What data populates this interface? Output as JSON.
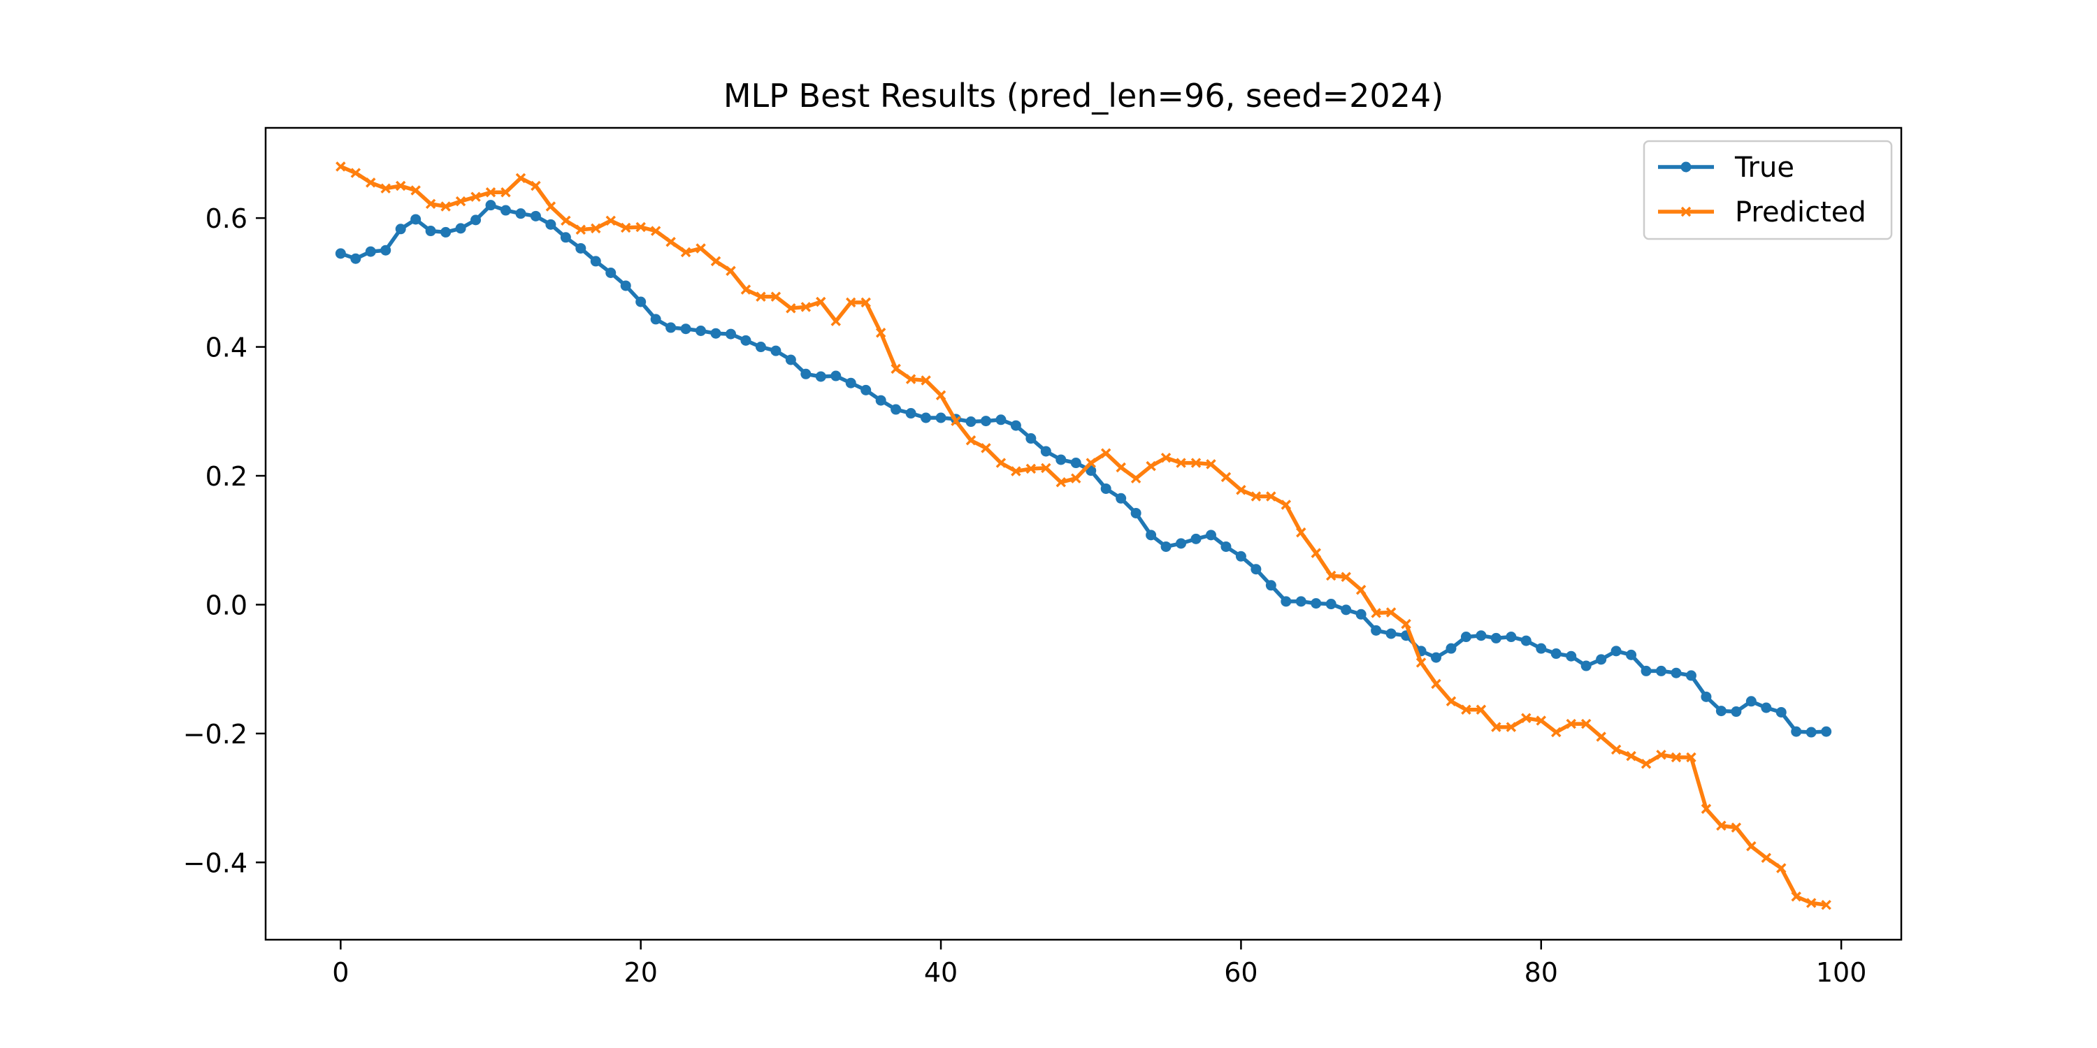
{
  "chart_data": {
    "type": "line",
    "title": "MLP Best Results (pred_len=96, seed=2024)",
    "xlabel": "",
    "ylabel": "",
    "xlim": [
      -5,
      104
    ],
    "ylim": [
      -0.52,
      0.74
    ],
    "x_ticks": [
      0,
      20,
      40,
      60,
      80,
      100
    ],
    "x_tick_labels": [
      "0",
      "20",
      "40",
      "60",
      "80",
      "100"
    ],
    "y_ticks": [
      -0.4,
      -0.2,
      0.0,
      0.2,
      0.4,
      0.6
    ],
    "y_tick_labels": [
      "−0.4",
      "−0.2",
      "0.0",
      "0.2",
      "0.4",
      "0.6"
    ],
    "grid": false,
    "legend_position": "top-right",
    "series": [
      {
        "name": "True",
        "color": "#1f77b4",
        "marker": "circle",
        "values": [
          0.545,
          0.537,
          0.548,
          0.55,
          0.583,
          0.598,
          0.58,
          0.578,
          0.584,
          0.597,
          0.62,
          0.612,
          0.607,
          0.603,
          0.59,
          0.57,
          0.553,
          0.533,
          0.515,
          0.495,
          0.47,
          0.443,
          0.43,
          0.428,
          0.425,
          0.421,
          0.42,
          0.41,
          0.4,
          0.394,
          0.38,
          0.358,
          0.354,
          0.355,
          0.344,
          0.333,
          0.317,
          0.303,
          0.297,
          0.29,
          0.29,
          0.288,
          0.284,
          0.285,
          0.287,
          0.278,
          0.258,
          0.238,
          0.225,
          0.22,
          0.208,
          0.18,
          0.165,
          0.142,
          0.108,
          0.09,
          0.095,
          0.102,
          0.108,
          0.09,
          0.075,
          0.055,
          0.03,
          0.005,
          0.005,
          0.002,
          0.001,
          -0.008,
          -0.015,
          -0.04,
          -0.045,
          -0.048,
          -0.072,
          -0.082,
          -0.068,
          -0.05,
          -0.048,
          -0.052,
          -0.05,
          -0.056,
          -0.068,
          -0.076,
          -0.08,
          -0.095,
          -0.085,
          -0.072,
          -0.078,
          -0.103,
          -0.103,
          -0.106,
          -0.11,
          -0.143,
          -0.165,
          -0.166,
          -0.15,
          -0.16,
          -0.167,
          -0.197,
          -0.198,
          -0.197
        ]
      },
      {
        "name": "Predicted",
        "color": "#ff7f0e",
        "marker": "x",
        "values": [
          0.68,
          0.67,
          0.655,
          0.646,
          0.65,
          0.643,
          0.622,
          0.618,
          0.626,
          0.633,
          0.64,
          0.64,
          0.662,
          0.65,
          0.618,
          0.596,
          0.582,
          0.584,
          0.596,
          0.585,
          0.586,
          0.58,
          0.563,
          0.547,
          0.553,
          0.533,
          0.518,
          0.489,
          0.478,
          0.478,
          0.46,
          0.462,
          0.47,
          0.44,
          0.469,
          0.469,
          0.422,
          0.366,
          0.35,
          0.348,
          0.325,
          0.285,
          0.255,
          0.243,
          0.22,
          0.207,
          0.211,
          0.212,
          0.19,
          0.196,
          0.22,
          0.235,
          0.213,
          0.196,
          0.215,
          0.228,
          0.22,
          0.22,
          0.218,
          0.198,
          0.178,
          0.168,
          0.168,
          0.155,
          0.112,
          0.08,
          0.045,
          0.043,
          0.023,
          -0.013,
          -0.012,
          -0.03,
          -0.09,
          -0.123,
          -0.15,
          -0.163,
          -0.163,
          -0.19,
          -0.19,
          -0.176,
          -0.18,
          -0.198,
          -0.185,
          -0.185,
          -0.205,
          -0.225,
          -0.235,
          -0.247,
          -0.233,
          -0.237,
          -0.237,
          -0.317,
          -0.343,
          -0.346,
          -0.375,
          -0.393,
          -0.409,
          -0.453,
          -0.463,
          -0.466
        ]
      }
    ]
  }
}
